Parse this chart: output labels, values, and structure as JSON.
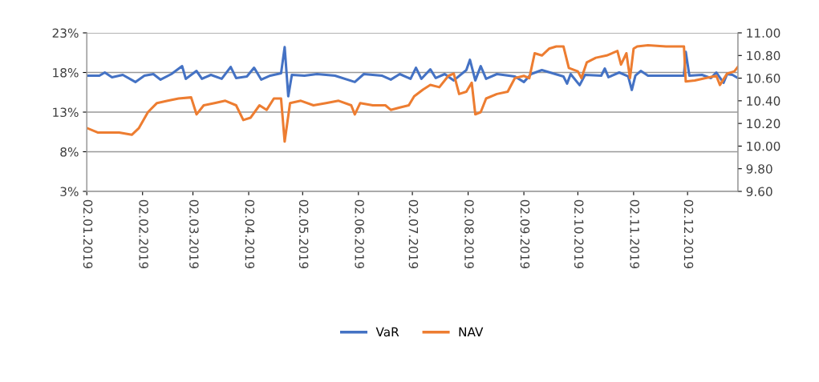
{
  "chart_data": {
    "type": "line",
    "legend": "bottom",
    "grid": "y",
    "line_style": "solid",
    "xlim": [
      "2019-01-02",
      "2019-12-30"
    ],
    "xticks": [
      {
        "value": "2019-01-02",
        "label": "02.01.2019"
      },
      {
        "value": "2019-02-02",
        "label": "02.02.2019"
      },
      {
        "value": "2019-03-02",
        "label": "02.03.2019"
      },
      {
        "value": "2019-04-02",
        "label": "02.04.2019"
      },
      {
        "value": "2019-05-02",
        "label": "02.05.2019"
      },
      {
        "value": "2019-06-02",
        "label": "02.06.2019"
      },
      {
        "value": "2019-07-02",
        "label": "02.07.2019"
      },
      {
        "value": "2019-08-02",
        "label": "02.08.2019"
      },
      {
        "value": "2019-09-02",
        "label": "02.09.2019"
      },
      {
        "value": "2019-10-02",
        "label": "02.10.2019"
      },
      {
        "value": "2019-11-02",
        "label": "02.11.2019"
      },
      {
        "value": "2019-12-02",
        "label": "02.12.2019"
      }
    ],
    "ylim": [
      3,
      23
    ],
    "yticks": [
      {
        "value": 3,
        "label": "3%"
      },
      {
        "value": 8,
        "label": "8%"
      },
      {
        "value": 13,
        "label": "13%"
      },
      {
        "value": 18,
        "label": "18%"
      },
      {
        "value": 23,
        "label": "23%"
      }
    ],
    "y2lim": [
      9.6,
      11.0
    ],
    "y2ticks": [
      {
        "value": 9.6,
        "label": "9.60"
      },
      {
        "value": 9.8,
        "label": "9.80"
      },
      {
        "value": 10.0,
        "label": "10.00"
      },
      {
        "value": 10.2,
        "label": "10.20"
      },
      {
        "value": 10.4,
        "label": "10.40"
      },
      {
        "value": 10.6,
        "label": "10.60"
      },
      {
        "value": 10.8,
        "label": "10.80"
      },
      {
        "value": 11.0,
        "label": "11.00"
      }
    ],
    "series": [
      {
        "name": "VaR",
        "color": "#4472c4",
        "x": [
          "2019-01-02",
          "2019-01-09",
          "2019-01-12",
          "2019-01-16",
          "2019-01-22",
          "2019-01-29",
          "2019-02-03",
          "2019-02-08",
          "2019-02-12",
          "2019-02-18",
          "2019-02-24",
          "2019-02-26",
          "2019-03-04",
          "2019-03-07",
          "2019-03-12",
          "2019-03-18",
          "2019-03-23",
          "2019-03-26",
          "2019-04-01",
          "2019-04-05",
          "2019-04-09",
          "2019-04-14",
          "2019-04-20",
          "2019-04-22",
          "2019-04-24",
          "2019-04-26",
          "2019-05-03",
          "2019-05-10",
          "2019-05-20",
          "2019-05-31",
          "2019-06-05",
          "2019-06-15",
          "2019-06-20",
          "2019-06-25",
          "2019-07-01",
          "2019-07-04",
          "2019-07-07",
          "2019-07-12",
          "2019-07-15",
          "2019-07-20",
          "2019-07-25",
          "2019-08-01",
          "2019-08-03",
          "2019-08-06",
          "2019-08-09",
          "2019-08-12",
          "2019-08-18",
          "2019-08-28",
          "2019-09-02",
          "2019-09-06",
          "2019-09-12",
          "2019-09-18",
          "2019-09-24",
          "2019-09-26",
          "2019-09-28",
          "2019-10-03",
          "2019-10-06",
          "2019-10-15",
          "2019-10-17",
          "2019-10-19",
          "2019-10-25",
          "2019-10-30",
          "2019-11-01",
          "2019-11-03",
          "2019-11-06",
          "2019-11-10",
          "2019-11-20",
          "2019-11-30",
          "2019-12-01",
          "2019-12-03",
          "2019-12-10",
          "2019-12-15",
          "2019-12-18",
          "2019-12-22",
          "2019-12-24",
          "2019-12-27",
          "2019-12-30"
        ],
        "values": [
          17.6,
          17.6,
          18.0,
          17.4,
          17.7,
          16.8,
          17.6,
          17.8,
          17.1,
          17.8,
          18.8,
          17.2,
          18.2,
          17.2,
          17.7,
          17.2,
          18.7,
          17.3,
          17.5,
          18.6,
          17.1,
          17.6,
          17.9,
          21.2,
          15.0,
          17.7,
          17.6,
          17.8,
          17.6,
          16.8,
          17.8,
          17.6,
          17.1,
          17.8,
          17.2,
          18.6,
          17.2,
          18.4,
          17.3,
          17.8,
          17.0,
          18.3,
          19.6,
          17.0,
          18.8,
          17.2,
          17.8,
          17.5,
          16.8,
          17.8,
          18.3,
          17.9,
          17.5,
          16.6,
          17.8,
          16.4,
          17.7,
          17.6,
          18.5,
          17.4,
          18.0,
          17.5,
          15.8,
          17.6,
          18.2,
          17.6,
          17.6,
          17.6,
          20.6,
          17.6,
          17.7,
          17.3,
          18.0,
          16.7,
          17.8,
          17.7,
          17.3
        ]
      },
      {
        "name": "NAV",
        "color": "#ed7d31",
        "axis": "y2",
        "x": [
          "2019-01-02",
          "2019-01-08",
          "2019-01-20",
          "2019-01-27",
          "2019-01-31",
          "2019-02-05",
          "2019-02-10",
          "2019-02-16",
          "2019-02-22",
          "2019-03-01",
          "2019-03-04",
          "2019-03-08",
          "2019-03-14",
          "2019-03-20",
          "2019-03-26",
          "2019-03-30",
          "2019-04-03",
          "2019-04-08",
          "2019-04-12",
          "2019-04-16",
          "2019-04-20",
          "2019-04-22",
          "2019-04-25",
          "2019-05-01",
          "2019-05-08",
          "2019-05-15",
          "2019-05-22",
          "2019-05-29",
          "2019-05-31",
          "2019-06-03",
          "2019-06-10",
          "2019-06-17",
          "2019-06-20",
          "2019-06-25",
          "2019-06-30",
          "2019-07-03",
          "2019-07-08",
          "2019-07-12",
          "2019-07-17",
          "2019-07-22",
          "2019-07-25",
          "2019-07-28",
          "2019-08-01",
          "2019-08-04",
          "2019-08-06",
          "2019-08-09",
          "2019-08-12",
          "2019-08-18",
          "2019-08-24",
          "2019-08-28",
          "2019-09-02",
          "2019-09-05",
          "2019-09-08",
          "2019-09-12",
          "2019-09-16",
          "2019-09-20",
          "2019-09-24",
          "2019-09-27",
          "2019-10-02",
          "2019-10-04",
          "2019-10-07",
          "2019-10-12",
          "2019-10-18",
          "2019-10-24",
          "2019-10-26",
          "2019-10-29",
          "2019-10-31",
          "2019-11-02",
          "2019-11-04",
          "2019-11-10",
          "2019-11-20",
          "2019-11-30",
          "2019-12-01",
          "2019-12-06",
          "2019-12-12",
          "2019-12-18",
          "2019-12-20",
          "2019-12-24",
          "2019-12-28",
          "2019-12-30"
        ],
        "values": [
          10.16,
          10.12,
          10.12,
          10.1,
          10.16,
          10.3,
          10.38,
          10.4,
          10.42,
          10.43,
          10.28,
          10.36,
          10.38,
          10.4,
          10.36,
          10.23,
          10.25,
          10.36,
          10.32,
          10.42,
          10.42,
          10.04,
          10.38,
          10.4,
          10.36,
          10.38,
          10.4,
          10.36,
          10.28,
          10.38,
          10.36,
          10.36,
          10.32,
          10.34,
          10.36,
          10.44,
          10.5,
          10.54,
          10.52,
          10.62,
          10.64,
          10.46,
          10.48,
          10.56,
          10.28,
          10.3,
          10.42,
          10.46,
          10.48,
          10.6,
          10.62,
          10.6,
          10.82,
          10.8,
          10.86,
          10.88,
          10.88,
          10.69,
          10.66,
          10.6,
          10.74,
          10.78,
          10.8,
          10.84,
          10.72,
          10.82,
          10.6,
          10.86,
          10.88,
          10.89,
          10.88,
          10.88,
          10.57,
          10.58,
          10.6,
          10.62,
          10.54,
          10.64,
          10.66,
          10.7
        ]
      }
    ]
  }
}
